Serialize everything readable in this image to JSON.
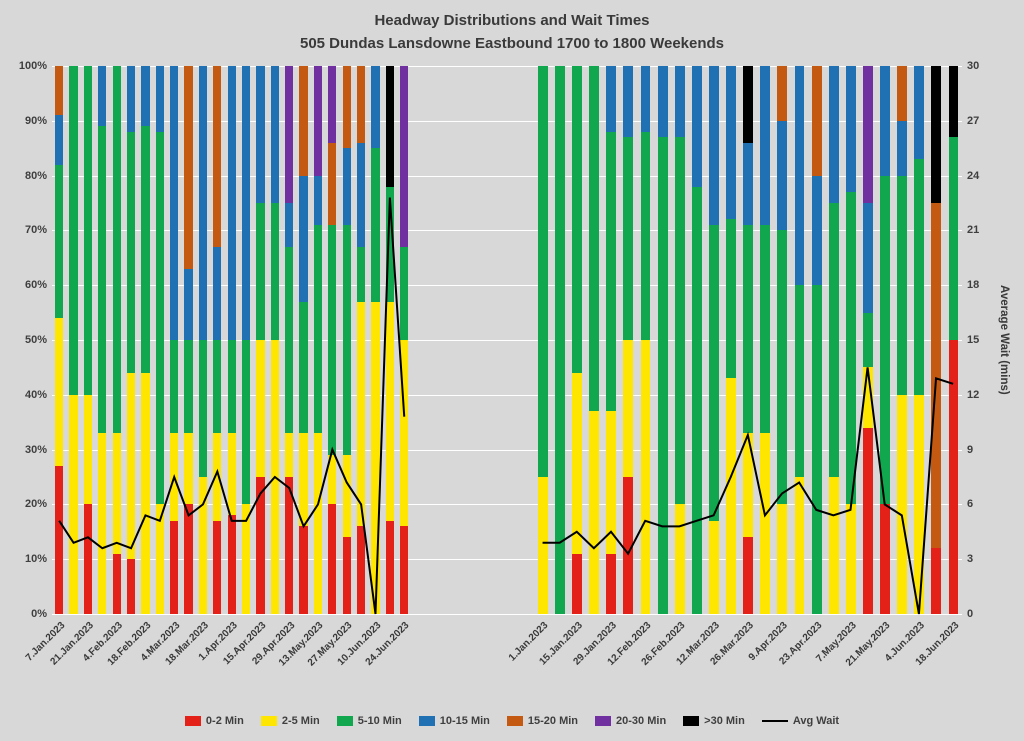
{
  "title": {
    "line1": "Headway Distributions and Wait Times",
    "line2": "505 Dundas  Lansdowne Eastbound 1700 to 1800 Weekends"
  },
  "axes": {
    "left": {
      "ticks": [
        "100%",
        "90%",
        "80%",
        "70%",
        "60%",
        "50%",
        "40%",
        "30%",
        "20%",
        "10%",
        "0%"
      ]
    },
    "right": {
      "ticks": [
        "30",
        "27",
        "24",
        "21",
        "18",
        "15",
        "12",
        "9",
        "6",
        "3",
        "0"
      ],
      "title": "Average Wait (mins)",
      "max": 30
    }
  },
  "legend": {
    "items": [
      {
        "label": "0-2 Min",
        "color": "#e32119",
        "type": "box"
      },
      {
        "label": "2-5 Min",
        "color": "#ffe600",
        "type": "box"
      },
      {
        "label": "5-10 Min",
        "color": "#10a74f",
        "type": "box"
      },
      {
        "label": "10-15 Min",
        "color": "#2070b4",
        "type": "box"
      },
      {
        "label": "15-20 Min",
        "color": "#c45a11",
        "type": "box"
      },
      {
        "label": "20-30 Min",
        "color": "#7030a0",
        "type": "box"
      },
      {
        "label": ">30 Min",
        "color": "#000000",
        "type": "box"
      },
      {
        "label": "Avg Wait",
        "color": "#000000",
        "type": "line"
      }
    ]
  },
  "chart_data": {
    "type": "bar",
    "subtype": "100%-stacked-with-line-overlay",
    "series_names": [
      "0-2 Min",
      "2-5 Min",
      "5-10 Min",
      "10-15 Min",
      "15-20 Min",
      "20-30 Min",
      ">30 Min"
    ],
    "colors": [
      "#e32119",
      "#ffe600",
      "#10a74f",
      "#2070b4",
      "#c45a11",
      "#7030a0",
      "#000000"
    ],
    "line_label": "Avg Wait",
    "line_color": "#000000",
    "left_axis_range": [
      0,
      100
    ],
    "right_axis_max": 30,
    "grid": "horizontal-white",
    "legend_position": "bottom",
    "clusters": [
      {
        "position": "left",
        "bars": [
          {
            "label": "7.Jan.2023",
            "segments": [
              27,
              27,
              28,
              9,
              9,
              0,
              0
            ],
            "avg_wait_min": 5.1
          },
          {
            "label": "",
            "segments": [
              0,
              40,
              60,
              0,
              0,
              0,
              0
            ],
            "avg_wait_min": 3.9
          },
          {
            "label": "21.Jan.2023",
            "segments": [
              20,
              20,
              60,
              0,
              0,
              0,
              0
            ],
            "avg_wait_min": 4.2
          },
          {
            "label": "",
            "segments": [
              0,
              33,
              56,
              11,
              0,
              0,
              0
            ],
            "avg_wait_min": 3.6
          },
          {
            "label": "4.Feb.2023",
            "segments": [
              11,
              22,
              67,
              0,
              0,
              0,
              0
            ],
            "avg_wait_min": 3.9
          },
          {
            "label": "",
            "segments": [
              10,
              34,
              44,
              12,
              0,
              0,
              0
            ],
            "avg_wait_min": 3.6
          },
          {
            "label": "18.Feb.2023",
            "segments": [
              0,
              44,
              45,
              11,
              0,
              0,
              0
            ],
            "avg_wait_min": 5.4
          },
          {
            "label": "",
            "segments": [
              0,
              20,
              68,
              12,
              0,
              0,
              0
            ],
            "avg_wait_min": 5.1
          },
          {
            "label": "4.Mar.2023",
            "segments": [
              17,
              16,
              17,
              50,
              0,
              0,
              0
            ],
            "avg_wait_min": 7.5
          },
          {
            "label": "",
            "segments": [
              20,
              13,
              17,
              13,
              37,
              0,
              0
            ],
            "avg_wait_min": 5.4
          },
          {
            "label": "18.Mar.2023",
            "segments": [
              0,
              25,
              25,
              50,
              0,
              0,
              0
            ],
            "avg_wait_min": 6.0
          },
          {
            "label": "",
            "segments": [
              17,
              16,
              17,
              17,
              33,
              0,
              0
            ],
            "avg_wait_min": 7.8
          },
          {
            "label": "1.Apr.2023",
            "segments": [
              18,
              15,
              17,
              50,
              0,
              0,
              0
            ],
            "avg_wait_min": 5.1
          },
          {
            "label": "",
            "segments": [
              0,
              20,
              30,
              50,
              0,
              0,
              0
            ],
            "avg_wait_min": 5.1
          },
          {
            "label": "15.Apr.2023",
            "segments": [
              25,
              25,
              25,
              25,
              0,
              0,
              0
            ],
            "avg_wait_min": 6.6
          },
          {
            "label": "",
            "segments": [
              0,
              50,
              25,
              25,
              0,
              0,
              0
            ],
            "avg_wait_min": 7.5
          },
          {
            "label": "29.Apr.2023",
            "segments": [
              25,
              8,
              34,
              8,
              0,
              25,
              0
            ],
            "avg_wait_min": 6.9
          },
          {
            "label": "",
            "segments": [
              16,
              17,
              24,
              23,
              20,
              0,
              0
            ],
            "avg_wait_min": 4.8
          },
          {
            "label": "13.May.2023",
            "segments": [
              0,
              33,
              38,
              9,
              0,
              20,
              0
            ],
            "avg_wait_min": 6.0
          },
          {
            "label": "",
            "segments": [
              20,
              9,
              42,
              0,
              15,
              14,
              0
            ],
            "avg_wait_min": 9.0
          },
          {
            "label": "27.May.2023",
            "segments": [
              14,
              15,
              42,
              14,
              15,
              0,
              0
            ],
            "avg_wait_min": 7.2
          },
          {
            "label": "",
            "segments": [
              16,
              41,
              10,
              19,
              14,
              0,
              0
            ],
            "avg_wait_min": 6.0
          },
          {
            "label": "10.Jun.2023",
            "segments": [
              0,
              57,
              28,
              15,
              0,
              0,
              0
            ],
            "avg_wait_min": 0
          },
          {
            "label": "",
            "segments": [
              17,
              40,
              21,
              0,
              0,
              0,
              22
            ],
            "avg_wait_min": 22.8
          },
          {
            "label": "24.Jun.2023",
            "segments": [
              16,
              34,
              17,
              0,
              0,
              33,
              0
            ],
            "avg_wait_min": 10.8
          }
        ]
      },
      {
        "position": "right",
        "bars": [
          {
            "label": "1.Jan.2023",
            "segments": [
              0,
              25,
              75,
              0,
              0,
              0,
              0
            ],
            "avg_wait_min": 3.9
          },
          {
            "label": "",
            "segments": [
              0,
              0,
              100,
              0,
              0,
              0,
              0
            ],
            "avg_wait_min": 3.9
          },
          {
            "label": "15.Jan.2023",
            "segments": [
              11,
              33,
              56,
              0,
              0,
              0,
              0
            ],
            "avg_wait_min": 4.5
          },
          {
            "label": "",
            "segments": [
              0,
              37,
              63,
              0,
              0,
              0,
              0
            ],
            "avg_wait_min": 3.6
          },
          {
            "label": "29.Jan.2023",
            "segments": [
              11,
              26,
              51,
              12,
              0,
              0,
              0
            ],
            "avg_wait_min": 4.5
          },
          {
            "label": "",
            "segments": [
              25,
              25,
              37,
              13,
              0,
              0,
              0
            ],
            "avg_wait_min": 3.3
          },
          {
            "label": "12.Feb.2023",
            "segments": [
              0,
              50,
              38,
              12,
              0,
              0,
              0
            ],
            "avg_wait_min": 5.1
          },
          {
            "label": "",
            "segments": [
              0,
              0,
              87,
              13,
              0,
              0,
              0
            ],
            "avg_wait_min": 4.8
          },
          {
            "label": "26.Feb.2023",
            "segments": [
              0,
              20,
              67,
              13,
              0,
              0,
              0
            ],
            "avg_wait_min": 4.8
          },
          {
            "label": "",
            "segments": [
              0,
              0,
              78,
              22,
              0,
              0,
              0
            ],
            "avg_wait_min": 5.1
          },
          {
            "label": "12.Mar.2023",
            "segments": [
              0,
              17,
              54,
              29,
              0,
              0,
              0
            ],
            "avg_wait_min": 5.4
          },
          {
            "label": "",
            "segments": [
              0,
              43,
              29,
              28,
              0,
              0,
              0
            ],
            "avg_wait_min": 7.5
          },
          {
            "label": "26.Mar.2023",
            "segments": [
              14,
              19,
              38,
              15,
              0,
              0,
              14
            ],
            "avg_wait_min": 9.8
          },
          {
            "label": "",
            "segments": [
              0,
              33,
              38,
              29,
              0,
              0,
              0
            ],
            "avg_wait_min": 5.4
          },
          {
            "label": "9.Apr.2023",
            "segments": [
              0,
              20,
              50,
              20,
              10,
              0,
              0
            ],
            "avg_wait_min": 6.6
          },
          {
            "label": "",
            "segments": [
              0,
              25,
              35,
              40,
              0,
              0,
              0
            ],
            "avg_wait_min": 7.2
          },
          {
            "label": "23.Apr.2023",
            "segments": [
              0,
              0,
              60,
              20,
              20,
              0,
              0
            ],
            "avg_wait_min": 5.7
          },
          {
            "label": "",
            "segments": [
              0,
              25,
              50,
              25,
              0,
              0,
              0
            ],
            "avg_wait_min": 5.4
          },
          {
            "label": "7.May.2023",
            "segments": [
              0,
              20,
              57,
              23,
              0,
              0,
              0
            ],
            "avg_wait_min": 5.7
          },
          {
            "label": "",
            "segments": [
              34,
              11,
              10,
              20,
              0,
              25,
              0
            ],
            "avg_wait_min": 13.5
          },
          {
            "label": "21.May.2023",
            "segments": [
              20,
              0,
              60,
              20,
              0,
              0,
              0
            ],
            "avg_wait_min": 6.0
          },
          {
            "label": "",
            "segments": [
              0,
              40,
              40,
              10,
              10,
              0,
              0
            ],
            "avg_wait_min": 5.4
          },
          {
            "label": "4.Jun.2023",
            "segments": [
              0,
              40,
              43,
              17,
              0,
              0,
              0
            ],
            "avg_wait_min": 0
          },
          {
            "label": "",
            "segments": [
              12,
              0,
              0,
              0,
              63,
              0,
              25
            ],
            "avg_wait_min": 12.9
          },
          {
            "label": "18.Jun.2023",
            "segments": [
              50,
              0,
              37,
              0,
              0,
              0,
              13
            ],
            "avg_wait_min": 12.6
          }
        ]
      }
    ]
  }
}
